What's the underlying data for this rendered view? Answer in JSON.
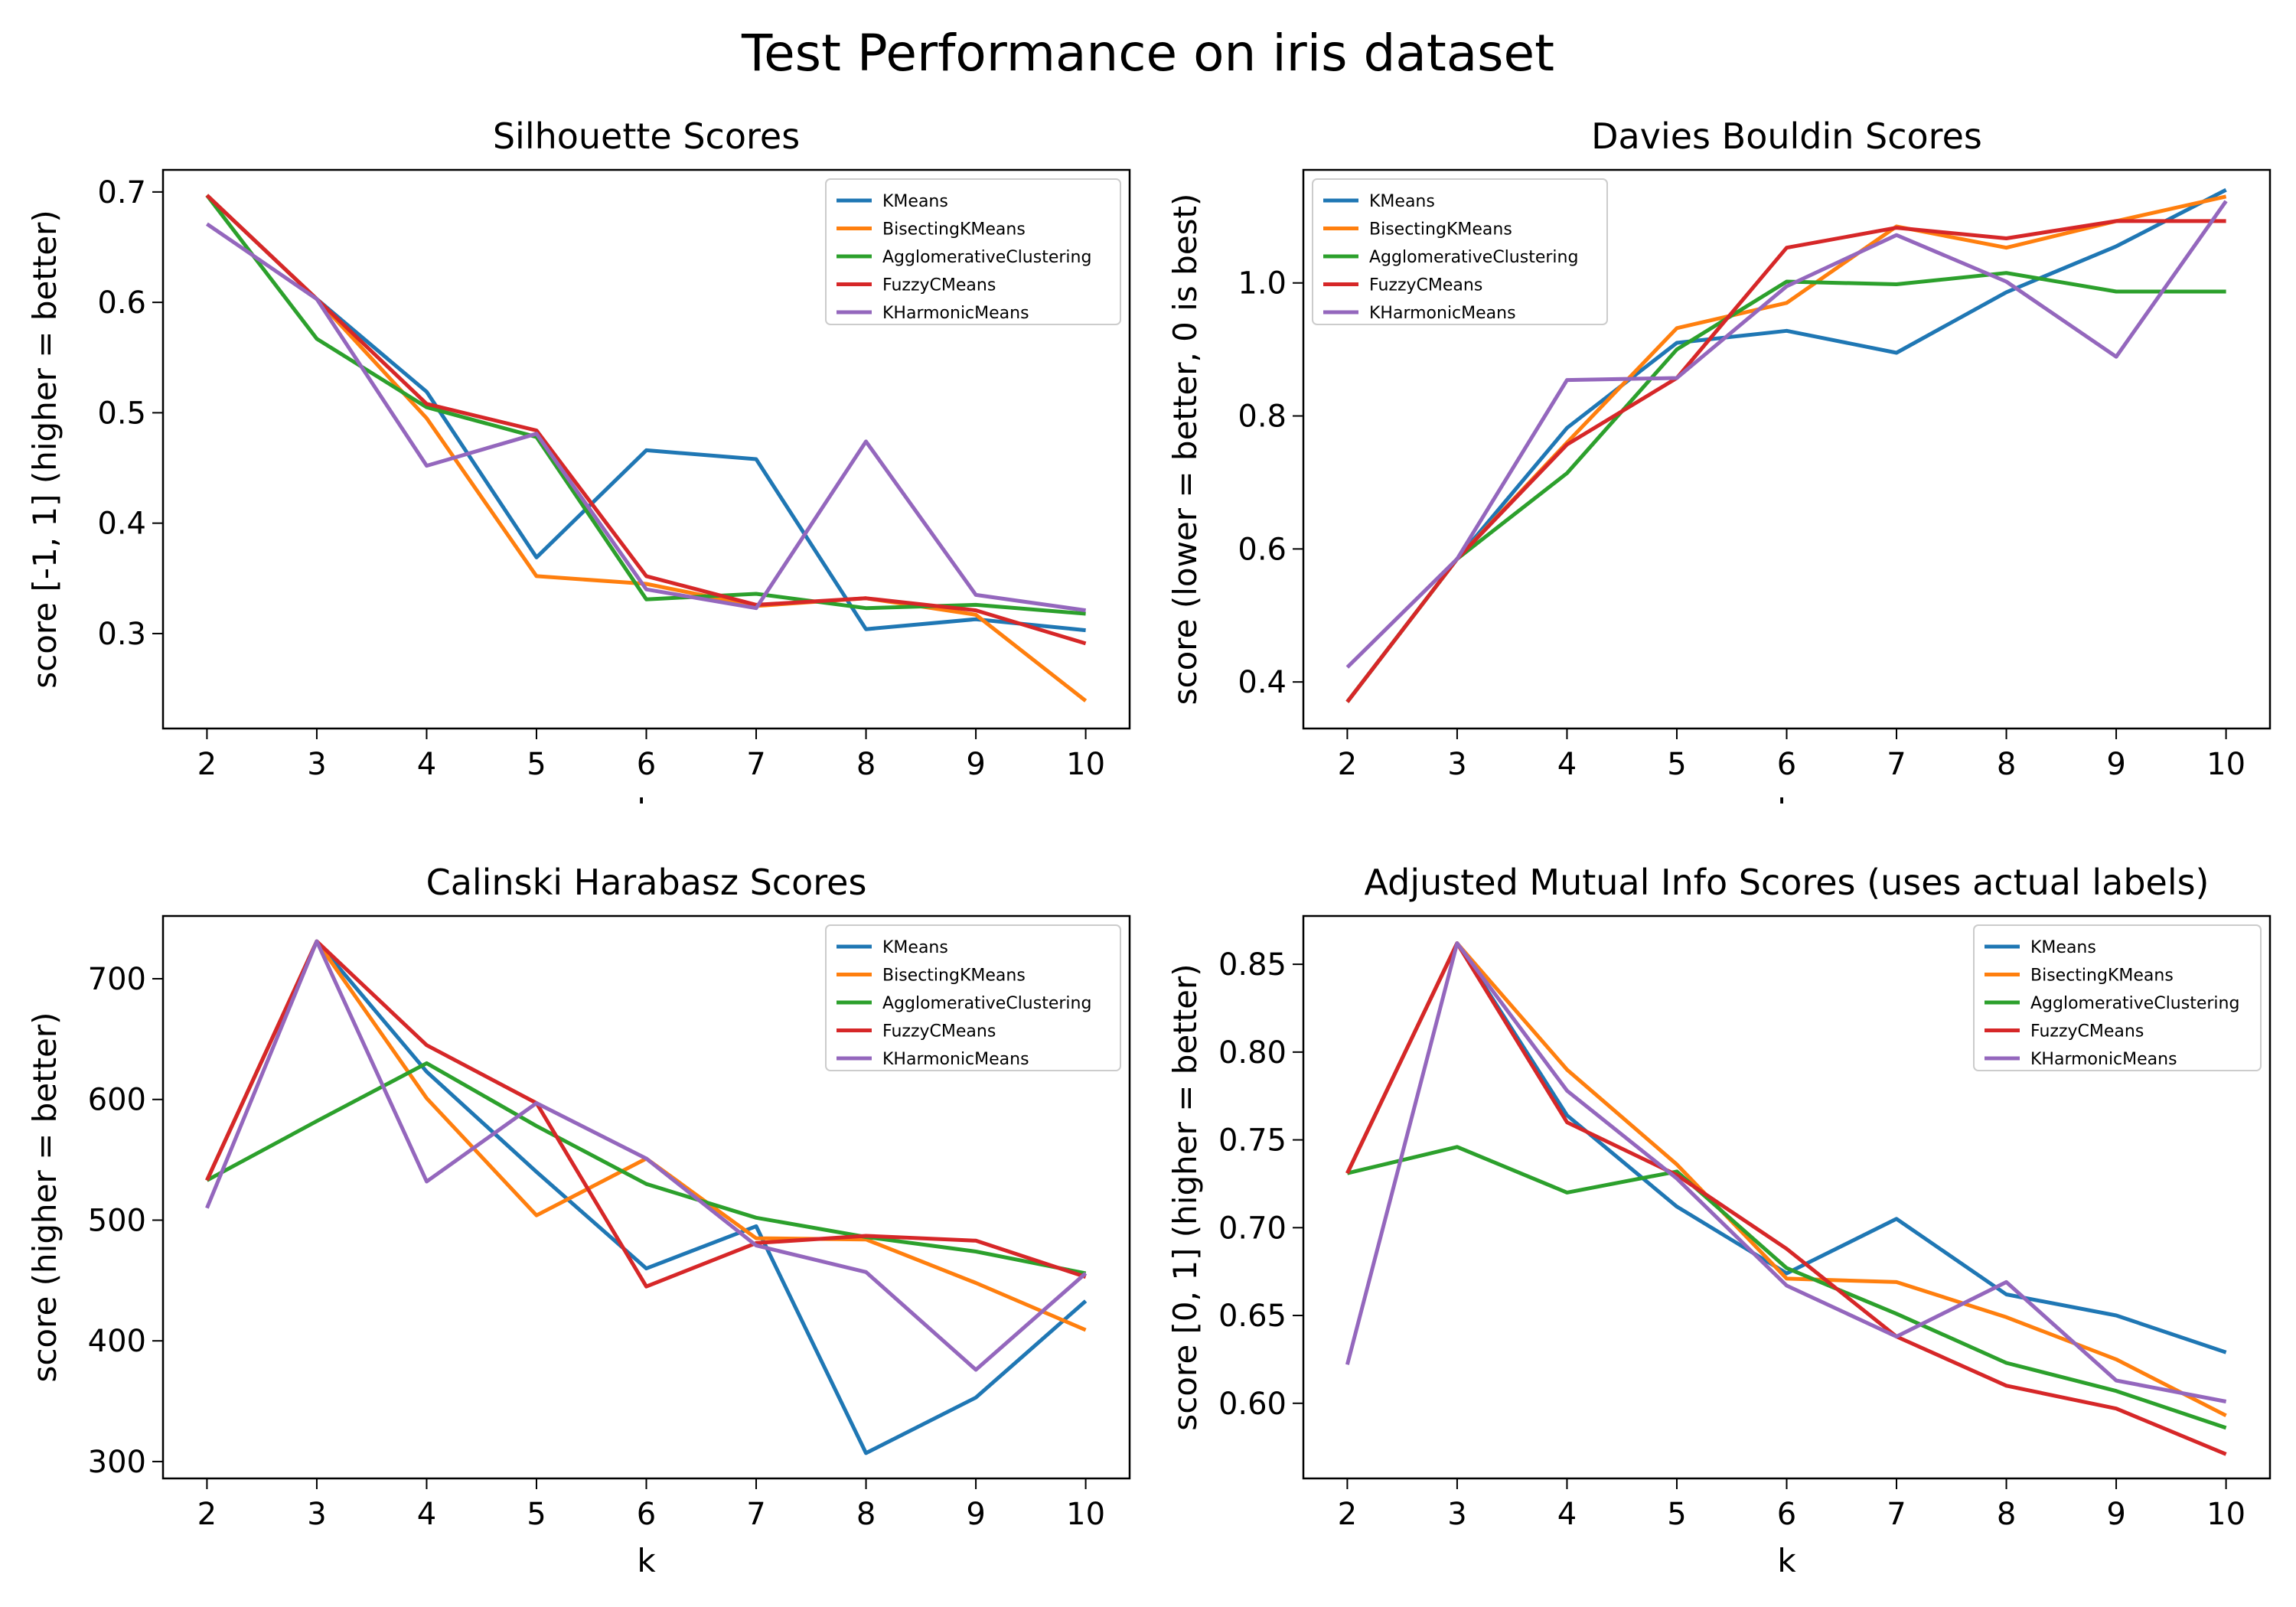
{
  "figure": {
    "title": "Test Performance on iris dataset"
  },
  "colors": {
    "KMeans": "#1f77b4",
    "BisectingKMeans": "#ff7f0e",
    "AgglomerativeClustering": "#2ca02c",
    "FuzzyCMeans": "#d62728",
    "KHarmonicMeans": "#9467bd"
  },
  "chart_data": [
    {
      "type": "line",
      "title": "Silhouette Scores",
      "xlabel": "k",
      "ylabel": "score [-1, 1] (higher = better)",
      "x": [
        2,
        3,
        4,
        5,
        6,
        7,
        8,
        9,
        10
      ],
      "xlim": [
        1.6,
        10.4
      ],
      "ylim": [
        0.214,
        0.72
      ],
      "yticks": [
        0.3,
        0.4,
        0.5,
        0.6,
        0.7
      ],
      "ytick_labels": [
        "0.3",
        "0.4",
        "0.5",
        "0.6",
        "0.7"
      ],
      "legend": "top-right",
      "series": [
        {
          "name": "KMeans",
          "values": [
            0.697,
            0.603,
            0.519,
            0.369,
            0.466,
            0.458,
            0.304,
            0.313,
            0.303
          ]
        },
        {
          "name": "BisectingKMeans",
          "values": [
            0.697,
            0.603,
            0.495,
            0.352,
            0.345,
            0.325,
            0.332,
            0.317,
            0.239
          ]
        },
        {
          "name": "AgglomerativeClustering",
          "values": [
            0.697,
            0.567,
            0.505,
            0.478,
            0.331,
            0.336,
            0.323,
            0.326,
            0.318
          ]
        },
        {
          "name": "FuzzyCMeans",
          "values": [
            0.697,
            0.603,
            0.508,
            0.484,
            0.352,
            0.326,
            0.332,
            0.321,
            0.291
          ]
        },
        {
          "name": "KHarmonicMeans",
          "values": [
            0.671,
            0.603,
            0.452,
            0.481,
            0.34,
            0.323,
            0.474,
            0.335,
            0.321
          ]
        }
      ]
    },
    {
      "type": "line",
      "title": "Davies Bouldin Scores",
      "xlabel": "k",
      "ylabel": "score (lower = better, 0 is best)",
      "x": [
        2,
        3,
        4,
        5,
        6,
        7,
        8,
        9,
        10
      ],
      "xlim": [
        1.6,
        10.4
      ],
      "ylim": [
        0.33,
        1.17
      ],
      "yticks": [
        0.4,
        0.6,
        0.8,
        1.0
      ],
      "ytick_labels": [
        "0.4",
        "0.6",
        "0.8",
        "1.0"
      ],
      "legend": "top-left",
      "series": [
        {
          "name": "KMeans",
          "values": [
            0.37,
            0.585,
            0.782,
            0.91,
            0.928,
            0.895,
            0.986,
            1.055,
            1.14
          ]
        },
        {
          "name": "BisectingKMeans",
          "values": [
            0.37,
            0.585,
            0.76,
            0.932,
            0.97,
            1.085,
            1.053,
            1.093,
            1.13
          ]
        },
        {
          "name": "AgglomerativeClustering",
          "values": [
            0.37,
            0.585,
            0.714,
            0.9,
            1.002,
            0.998,
            1.015,
            0.987,
            0.987
          ]
        },
        {
          "name": "FuzzyCMeans",
          "values": [
            0.37,
            0.585,
            0.757,
            0.857,
            1.053,
            1.083,
            1.067,
            1.093,
            1.093
          ]
        },
        {
          "name": "KHarmonicMeans",
          "values": [
            0.422,
            0.585,
            0.854,
            0.857,
            0.995,
            1.072,
            1.002,
            0.889,
            1.123
          ]
        }
      ]
    },
    {
      "type": "line",
      "title": "Calinski Harabasz Scores",
      "xlabel": "k",
      "ylabel": "score (higher = better)",
      "x": [
        2,
        3,
        4,
        5,
        6,
        7,
        8,
        9,
        10
      ],
      "xlim": [
        1.6,
        10.4
      ],
      "ylim": [
        286,
        752
      ],
      "yticks": [
        300,
        400,
        500,
        600,
        700
      ],
      "ytick_labels": [
        "300",
        "400",
        "500",
        "600",
        "700"
      ],
      "legend": "top-right",
      "series": [
        {
          "name": "KMeans",
          "values": [
            533,
            731,
            623,
            540,
            460,
            495,
            307,
            353,
            433
          ]
        },
        {
          "name": "BisectingKMeans",
          "values": [
            533,
            731,
            601,
            504,
            551,
            485,
            484,
            448,
            409
          ]
        },
        {
          "name": "AgglomerativeClustering",
          "values": [
            533,
            582,
            630,
            578,
            530,
            502,
            486,
            474,
            456
          ]
        },
        {
          "name": "FuzzyCMeans",
          "values": [
            533,
            731,
            645,
            597,
            445,
            481,
            487,
            483,
            453
          ]
        },
        {
          "name": "KHarmonicMeans",
          "values": [
            510,
            731,
            532,
            597,
            551,
            479,
            457,
            376,
            456
          ]
        }
      ]
    },
    {
      "type": "line",
      "title": "Adjusted Mutual Info Scores (uses actual labels)",
      "xlabel": "k",
      "ylabel": "score [0, 1] (higher = better)",
      "x": [
        2,
        3,
        4,
        5,
        6,
        7,
        8,
        9,
        10
      ],
      "xlim": [
        1.6,
        10.4
      ],
      "ylim": [
        0.5572,
        0.8775
      ],
      "yticks": [
        0.6,
        0.65,
        0.7,
        0.75,
        0.8,
        0.85
      ],
      "ytick_labels": [
        "0.60",
        "0.65",
        "0.70",
        "0.75",
        "0.80",
        "0.85"
      ],
      "legend": "top-right",
      "series": [
        {
          "name": "KMeans",
          "values": [
            0.731,
            0.862,
            0.764,
            0.712,
            0.674,
            0.705,
            0.662,
            0.65,
            0.629
          ]
        },
        {
          "name": "BisectingKMeans",
          "values": [
            0.731,
            0.862,
            0.79,
            0.736,
            0.671,
            0.669,
            0.649,
            0.625,
            0.593
          ]
        },
        {
          "name": "AgglomerativeClustering",
          "values": [
            0.731,
            0.746,
            0.72,
            0.732,
            0.677,
            0.651,
            0.623,
            0.607,
            0.586
          ]
        },
        {
          "name": "FuzzyCMeans",
          "values": [
            0.731,
            0.862,
            0.76,
            0.73,
            0.688,
            0.638,
            0.61,
            0.597,
            0.571
          ]
        },
        {
          "name": "KHarmonicMeans",
          "values": [
            0.622,
            0.862,
            0.778,
            0.728,
            0.667,
            0.638,
            0.669,
            0.613,
            0.601
          ]
        }
      ]
    }
  ]
}
